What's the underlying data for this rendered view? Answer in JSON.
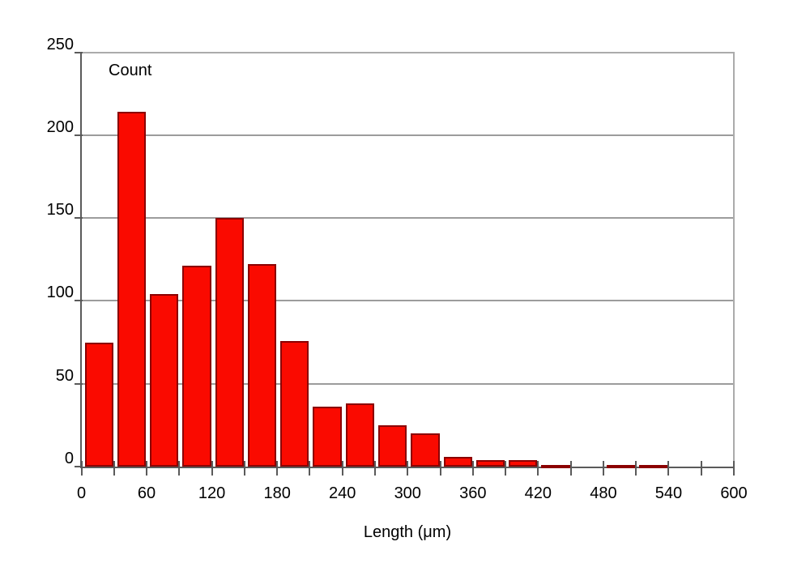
{
  "chart_data": {
    "type": "bar",
    "subtype": "histogram",
    "title": "",
    "series_label": "Count",
    "xlabel": "Length (μm)",
    "ylabel": "",
    "xlim": [
      0,
      600
    ],
    "ylim": [
      0,
      250
    ],
    "bin_width": 30,
    "bin_starts": [
      0,
      30,
      60,
      90,
      120,
      150,
      180,
      210,
      240,
      270,
      300,
      330,
      360,
      390,
      420,
      450,
      480,
      510,
      540,
      570
    ],
    "counts": [
      75,
      214,
      104,
      121,
      150,
      122,
      76,
      36,
      38,
      25,
      20,
      6,
      4,
      4,
      1,
      0,
      1,
      1,
      0,
      0
    ],
    "x_minor_tick_step": 30,
    "x_label_tick_step": 60,
    "x_tick_labels": [
      "0",
      "60",
      "120",
      "180",
      "240",
      "300",
      "360",
      "420",
      "480",
      "540",
      "600"
    ],
    "y_ticks": [
      0,
      50,
      100,
      150,
      200,
      250
    ],
    "y_tick_labels": [
      "0",
      "50",
      "100",
      "150",
      "200",
      "250"
    ],
    "grid": "horizontal-only",
    "legend": "none",
    "colors": {
      "bar_fill": "#fa0a00",
      "bar_border": "#8b0000",
      "gridline": "#9c9c9c",
      "axis": "#5a5a5a",
      "frame": "#ababab",
      "text": "#000000",
      "background": "#ffffff"
    }
  }
}
